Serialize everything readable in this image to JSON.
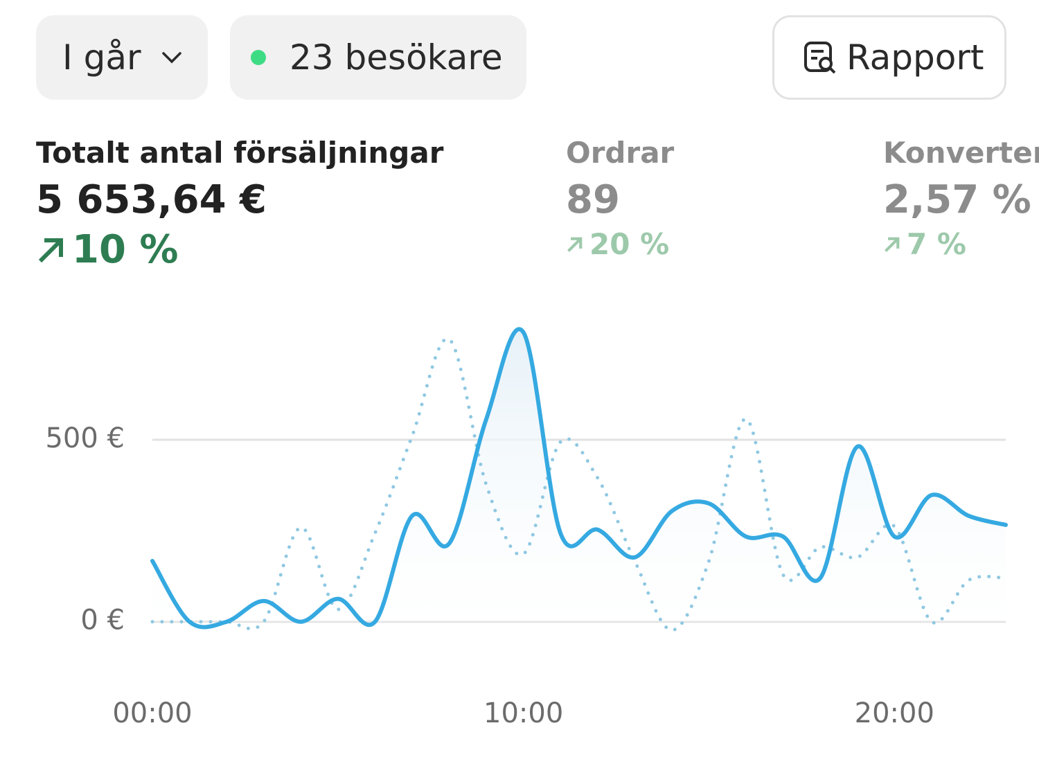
{
  "header": {
    "period": "I går",
    "visitors": "23 besökare",
    "report": "Rapport"
  },
  "metrics": [
    {
      "label": "Totalt antal försäljningar",
      "value": "5 653,64 €",
      "change": "10 %"
    },
    {
      "label": "Ordrar",
      "value": "89",
      "change": "20 %"
    },
    {
      "label": "Konverteri",
      "value": "2,57 %",
      "change": "7 %"
    }
  ],
  "chart_data": {
    "type": "line",
    "x": [
      0,
      1,
      2,
      3,
      4,
      5,
      6,
      7,
      8,
      9,
      10,
      11,
      12,
      13,
      14,
      15,
      16,
      17,
      18,
      19,
      20,
      21,
      22,
      23
    ],
    "xlim": [
      0,
      23
    ],
    "xticks": [
      {
        "value": 0,
        "label": "00:00"
      },
      {
        "value": 10,
        "label": "10:00"
      },
      {
        "value": 20,
        "label": "20:00"
      }
    ],
    "ylim": [
      -50,
      850
    ],
    "yticks": [
      {
        "value": 0,
        "label": "0 €"
      },
      {
        "value": 500,
        "label": "500 €"
      }
    ],
    "grid": true,
    "series": [
      {
        "color": "#35a9e1",
        "style": "solid",
        "area": true,
        "values": [
          167,
          0,
          0,
          57,
          0,
          63,
          0,
          291,
          215,
          557,
          795,
          243,
          253,
          177,
          304,
          325,
          234,
          234,
          120,
          481,
          234,
          348,
          291,
          266
        ]
      },
      {
        "color": "#8fc8e2",
        "style": "dotted",
        "values": [
          0,
          0,
          0,
          0,
          259,
          34,
          243,
          510,
          776,
          376,
          186,
          494,
          395,
          167,
          -23,
          167,
          557,
          129,
          205,
          177,
          262,
          0,
          114,
          120
        ]
      }
    ]
  }
}
